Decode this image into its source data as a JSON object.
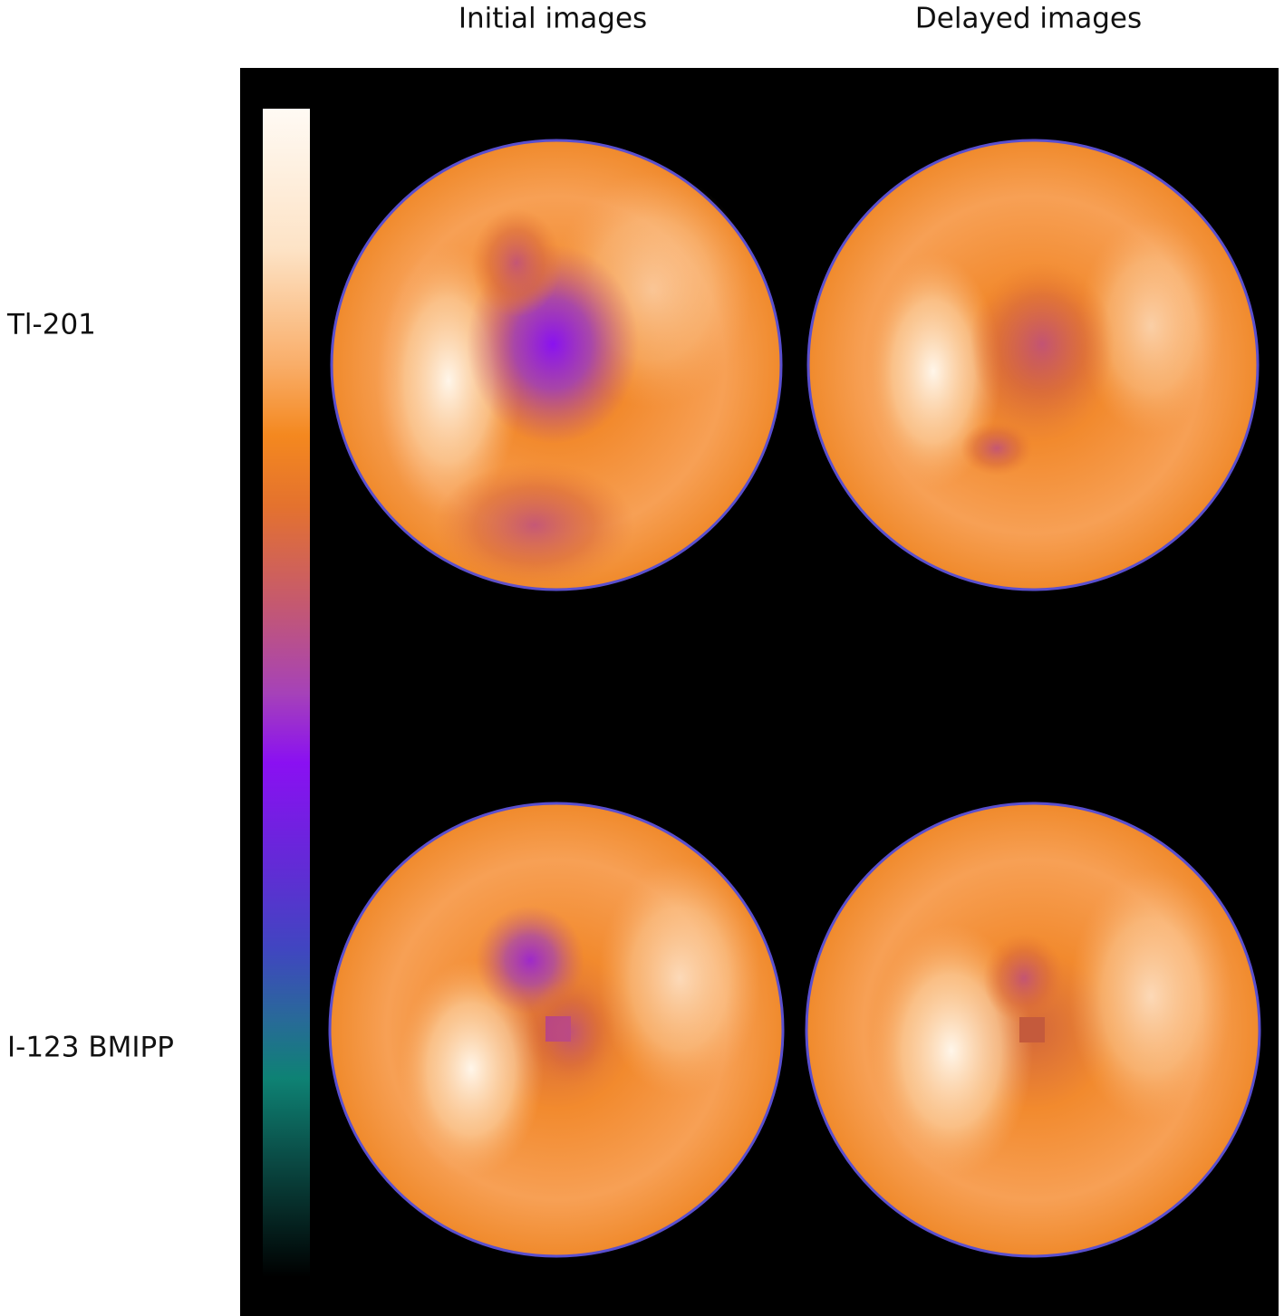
{
  "columns": [
    "Initial images",
    "Delayed images"
  ],
  "rows": [
    "Tl-201",
    "I-123 BMIPP"
  ]
}
